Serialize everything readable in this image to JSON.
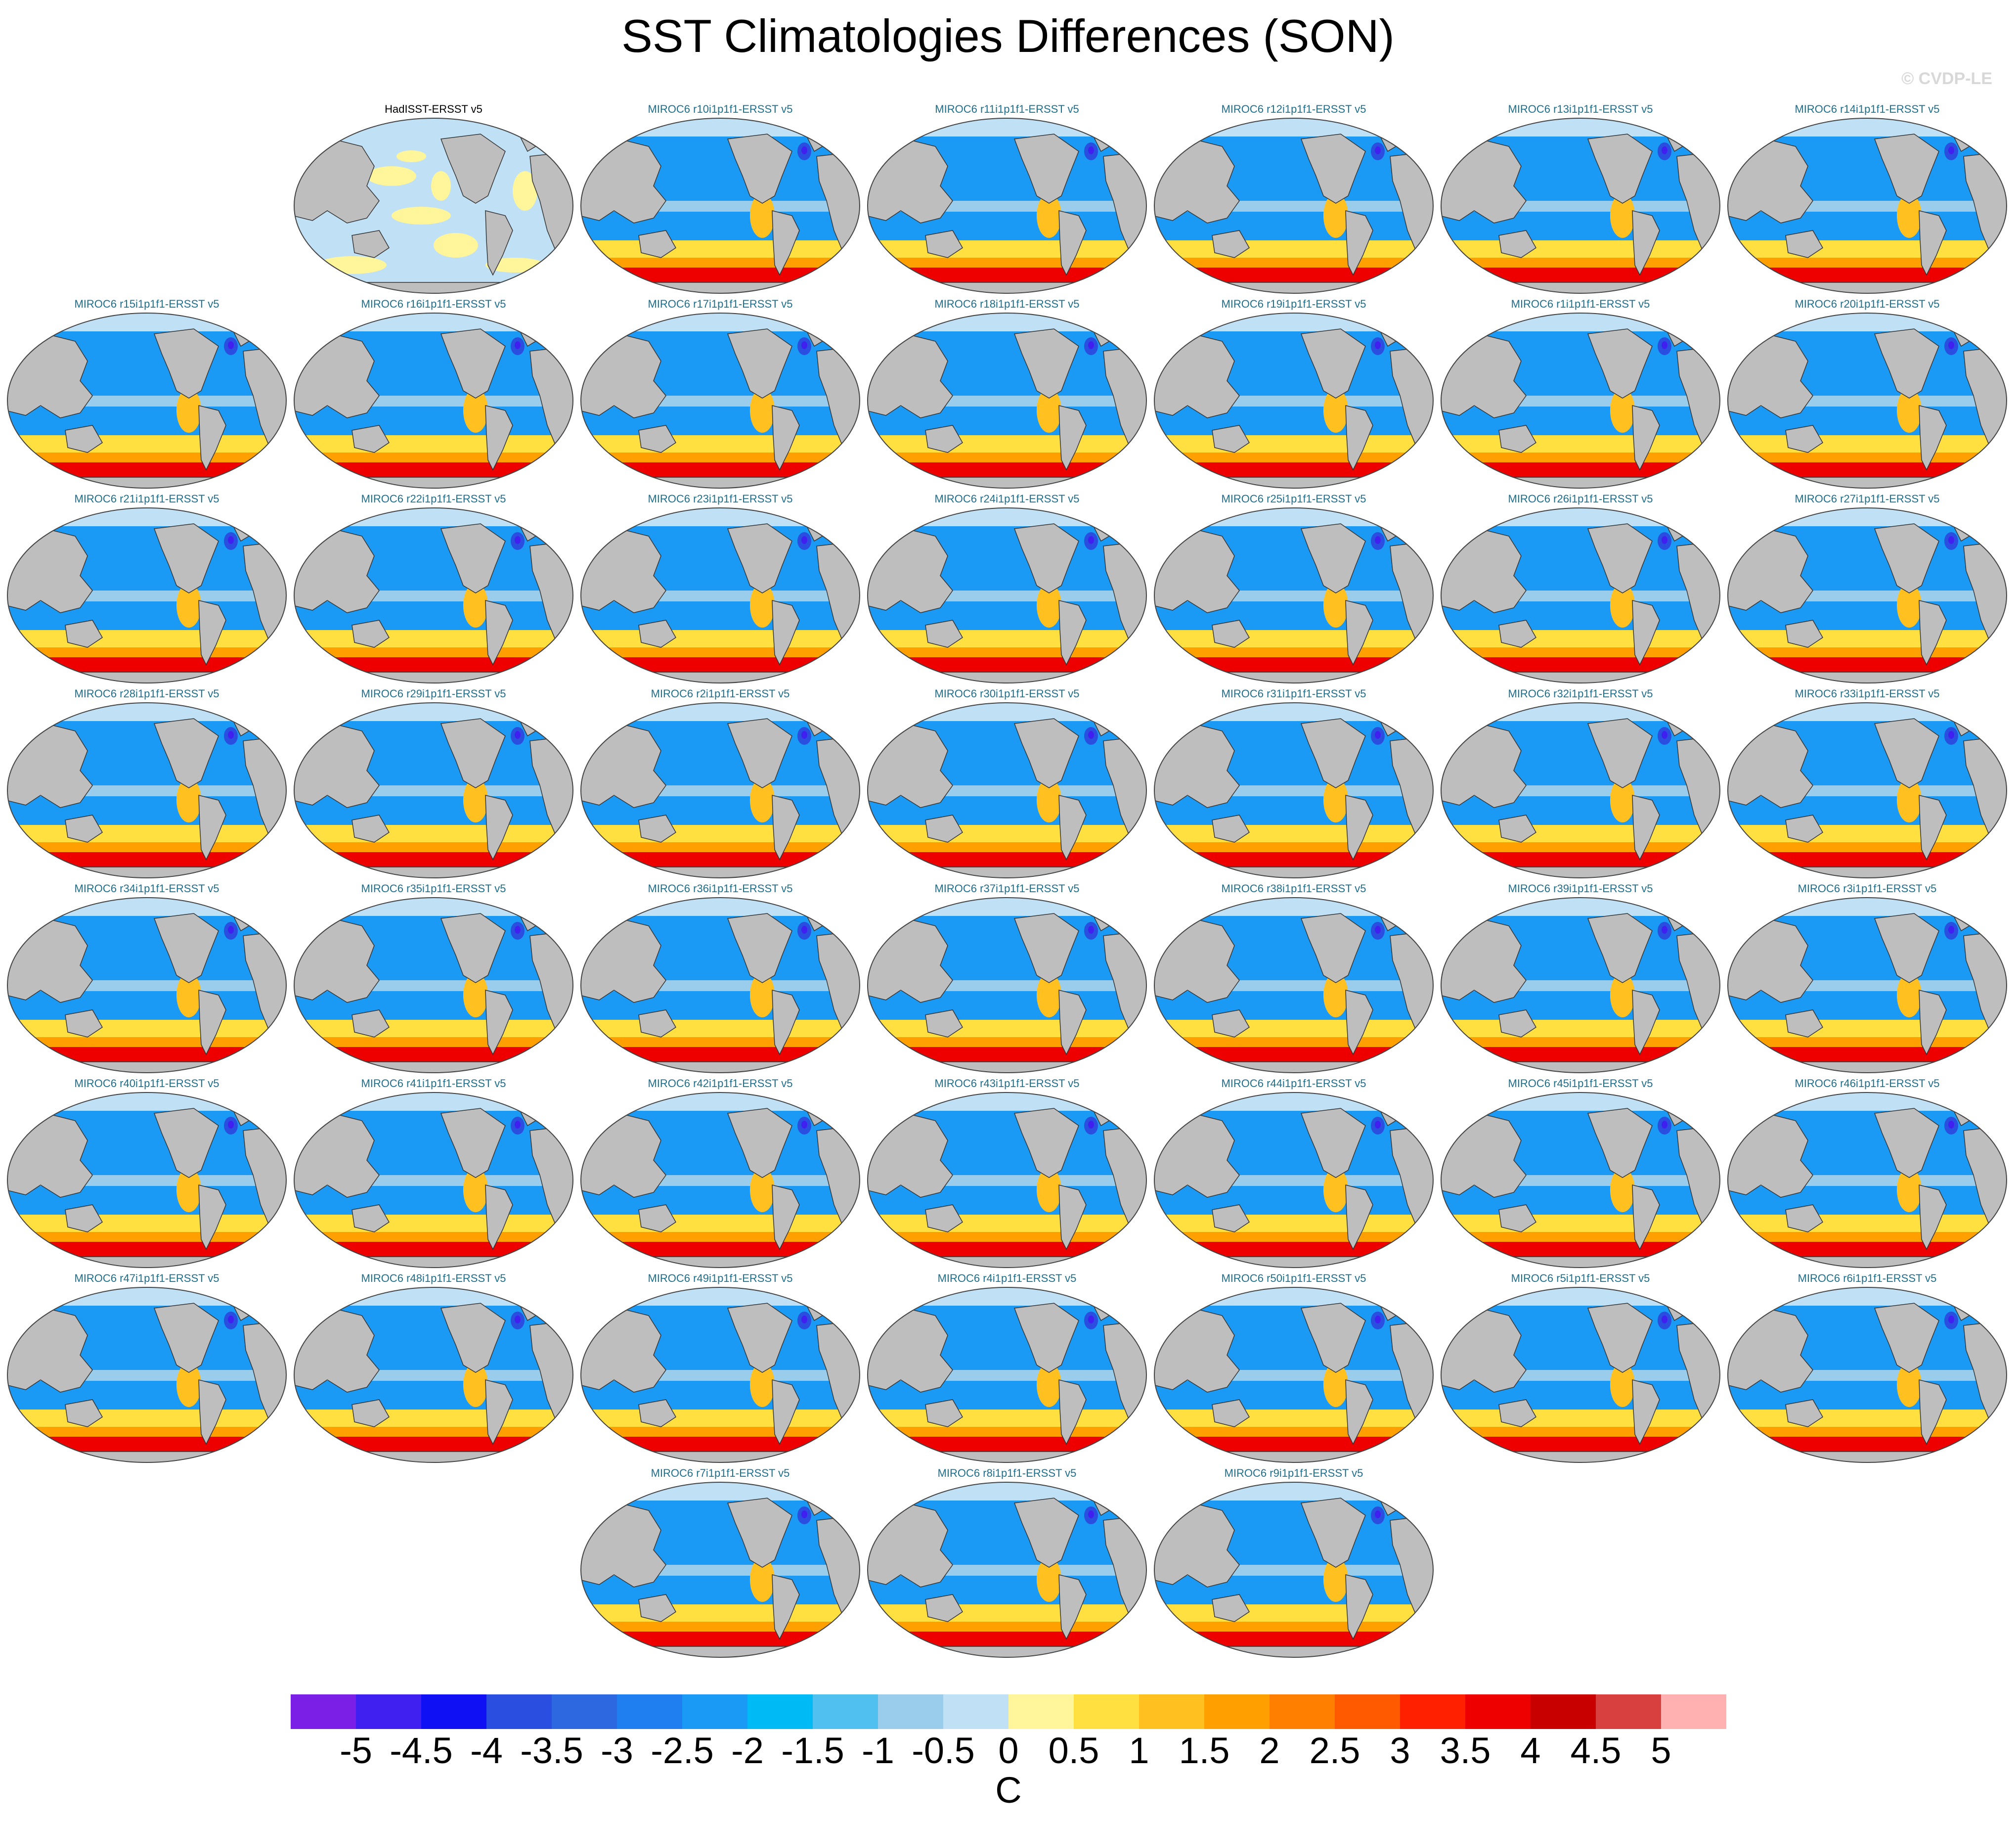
{
  "title": "SST Climatologies Differences (SON)",
  "copyright": "© CVDP-LE",
  "panels": [
    {
      "title": "HadISST-ERSST v5",
      "kind": "obs"
    },
    {
      "title": "MIROC6 r10i1p1f1-ERSST v5",
      "kind": "model"
    },
    {
      "title": "MIROC6 r11i1p1f1-ERSST v5",
      "kind": "model"
    },
    {
      "title": "MIROC6 r12i1p1f1-ERSST v5",
      "kind": "model"
    },
    {
      "title": "MIROC6 r13i1p1f1-ERSST v5",
      "kind": "model"
    },
    {
      "title": "MIROC6 r14i1p1f1-ERSST v5",
      "kind": "model"
    },
    {
      "title": "MIROC6 r15i1p1f1-ERSST v5",
      "kind": "model"
    },
    {
      "title": "MIROC6 r16i1p1f1-ERSST v5",
      "kind": "model"
    },
    {
      "title": "MIROC6 r17i1p1f1-ERSST v5",
      "kind": "model"
    },
    {
      "title": "MIROC6 r18i1p1f1-ERSST v5",
      "kind": "model"
    },
    {
      "title": "MIROC6 r19i1p1f1-ERSST v5",
      "kind": "model"
    },
    {
      "title": "MIROC6 r1i1p1f1-ERSST v5",
      "kind": "model"
    },
    {
      "title": "MIROC6 r20i1p1f1-ERSST v5",
      "kind": "model"
    },
    {
      "title": "MIROC6 r21i1p1f1-ERSST v5",
      "kind": "model"
    },
    {
      "title": "MIROC6 r22i1p1f1-ERSST v5",
      "kind": "model"
    },
    {
      "title": "MIROC6 r23i1p1f1-ERSST v5",
      "kind": "model"
    },
    {
      "title": "MIROC6 r24i1p1f1-ERSST v5",
      "kind": "model"
    },
    {
      "title": "MIROC6 r25i1p1f1-ERSST v5",
      "kind": "model"
    },
    {
      "title": "MIROC6 r26i1p1f1-ERSST v5",
      "kind": "model"
    },
    {
      "title": "MIROC6 r27i1p1f1-ERSST v5",
      "kind": "model"
    },
    {
      "title": "MIROC6 r28i1p1f1-ERSST v5",
      "kind": "model"
    },
    {
      "title": "MIROC6 r29i1p1f1-ERSST v5",
      "kind": "model"
    },
    {
      "title": "MIROC6 r2i1p1f1-ERSST v5",
      "kind": "model"
    },
    {
      "title": "MIROC6 r30i1p1f1-ERSST v5",
      "kind": "model"
    },
    {
      "title": "MIROC6 r31i1p1f1-ERSST v5",
      "kind": "model"
    },
    {
      "title": "MIROC6 r32i1p1f1-ERSST v5",
      "kind": "model"
    },
    {
      "title": "MIROC6 r33i1p1f1-ERSST v5",
      "kind": "model"
    },
    {
      "title": "MIROC6 r34i1p1f1-ERSST v5",
      "kind": "model"
    },
    {
      "title": "MIROC6 r35i1p1f1-ERSST v5",
      "kind": "model"
    },
    {
      "title": "MIROC6 r36i1p1f1-ERSST v5",
      "kind": "model"
    },
    {
      "title": "MIROC6 r37i1p1f1-ERSST v5",
      "kind": "model"
    },
    {
      "title": "MIROC6 r38i1p1f1-ERSST v5",
      "kind": "model"
    },
    {
      "title": "MIROC6 r39i1p1f1-ERSST v5",
      "kind": "model"
    },
    {
      "title": "MIROC6 r3i1p1f1-ERSST v5",
      "kind": "model"
    },
    {
      "title": "MIROC6 r40i1p1f1-ERSST v5",
      "kind": "model"
    },
    {
      "title": "MIROC6 r41i1p1f1-ERSST v5",
      "kind": "model"
    },
    {
      "title": "MIROC6 r42i1p1f1-ERSST v5",
      "kind": "model"
    },
    {
      "title": "MIROC6 r43i1p1f1-ERSST v5",
      "kind": "model"
    },
    {
      "title": "MIROC6 r44i1p1f1-ERSST v5",
      "kind": "model"
    },
    {
      "title": "MIROC6 r45i1p1f1-ERSST v5",
      "kind": "model"
    },
    {
      "title": "MIROC6 r46i1p1f1-ERSST v5",
      "kind": "model"
    },
    {
      "title": "MIROC6 r47i1p1f1-ERSST v5",
      "kind": "model"
    },
    {
      "title": "MIROC6 r48i1p1f1-ERSST v5",
      "kind": "model"
    },
    {
      "title": "MIROC6 r49i1p1f1-ERSST v5",
      "kind": "model"
    },
    {
      "title": "MIROC6 r4i1p1f1-ERSST v5",
      "kind": "model"
    },
    {
      "title": "MIROC6 r50i1p1f1-ERSST v5",
      "kind": "model"
    },
    {
      "title": "MIROC6 r5i1p1f1-ERSST v5",
      "kind": "model"
    },
    {
      "title": "MIROC6 r6i1p1f1-ERSST v5",
      "kind": "model"
    },
    {
      "title": "MIROC6 r7i1p1f1-ERSST v5",
      "kind": "model"
    },
    {
      "title": "MIROC6 r8i1p1f1-ERSST v5",
      "kind": "model"
    },
    {
      "title": "MIROC6 r9i1p1f1-ERSST v5",
      "kind": "model"
    }
  ],
  "colors": {
    "obs_title": "#000000",
    "model_title": "#1f6e8c",
    "land": "#bebebe",
    "coast": "#333333"
  },
  "colorbar": {
    "unit": "C",
    "labels": [
      "-5",
      "-4.5",
      "-4",
      "-3.5",
      "-3",
      "-2.5",
      "-2",
      "-1.5",
      "-1",
      "-0.5",
      "0",
      "0.5",
      "1",
      "1.5",
      "2",
      "2.5",
      "3",
      "3.5",
      "4",
      "4.5",
      "5"
    ],
    "colors": [
      "#7b1fe6",
      "#4020f0",
      "#1010f5",
      "#2a4fe0",
      "#2e68e0",
      "#1f7ff0",
      "#1a9af5",
      "#00baf5",
      "#50c0f0",
      "#9acdeb",
      "#bfe0f5",
      "#fff59a",
      "#ffe040",
      "#ffc020",
      "#ffa000",
      "#ff8000",
      "#ff5a00",
      "#ff2000",
      "#ee0000",
      "#c80000",
      "#d84040",
      "#ffb0b0"
    ]
  }
}
